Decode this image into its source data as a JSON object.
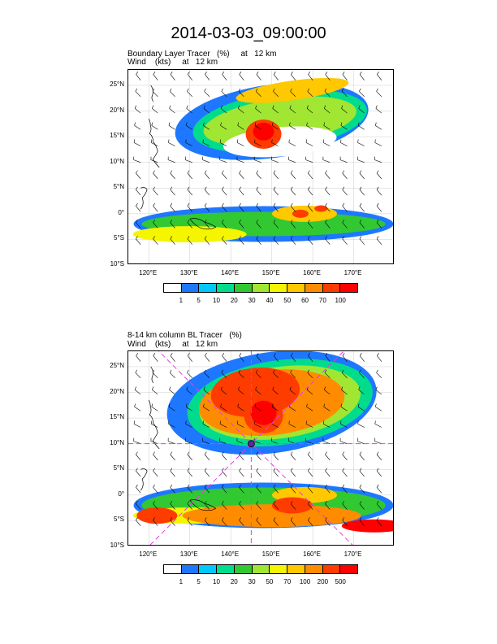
{
  "title": "2014-03-03_09:00:00",
  "panels": [
    {
      "title_line1": "Boundary Layer Tracer   (%)     at   12 km",
      "title_line2": "Wind    (kts)     at   12 km",
      "lat_labels": [
        "25°N",
        "20°N",
        "15°N",
        "10°N",
        "5°N",
        "0°",
        "5°S",
        "10°S"
      ],
      "lon_labels": [
        "120°E",
        "130°E",
        "140°E",
        "150°E",
        "160°E",
        "170°E"
      ],
      "colorbar_labels": [
        "1",
        "5",
        "10",
        "20",
        "30",
        "40",
        "50",
        "60",
        "70",
        "100"
      ],
      "colorbar_colors": [
        "#ffffff",
        "#1e78ff",
        "#00c8ff",
        "#00dc8c",
        "#32c832",
        "#a0e632",
        "#f5f500",
        "#ffc800",
        "#ff8c00",
        "#ff3c00",
        "#ff0000"
      ],
      "has_center_marker": false
    },
    {
      "title_line1": "8-14 km column BL Tracer   (%)",
      "title_line2": "Wind    (kts)     at   12 km",
      "lat_labels": [
        "25°N",
        "20°N",
        "15°N",
        "10°N",
        "5°N",
        "0°",
        "5°S",
        "10°S"
      ],
      "lon_labels": [
        "120°E",
        "130°E",
        "140°E",
        "150°E",
        "160°E",
        "170°E"
      ],
      "colorbar_labels": [
        "1",
        "5",
        "10",
        "20",
        "30",
        "50",
        "70",
        "100",
        "200",
        "500"
      ],
      "colorbar_colors": [
        "#ffffff",
        "#1e78ff",
        "#00c8ff",
        "#00dc8c",
        "#32c832",
        "#a0e632",
        "#f5f500",
        "#ffc800",
        "#ff8c00",
        "#ff3c00",
        "#ff0000"
      ],
      "has_center_marker": true,
      "marker_color": "#e040e0"
    }
  ]
}
